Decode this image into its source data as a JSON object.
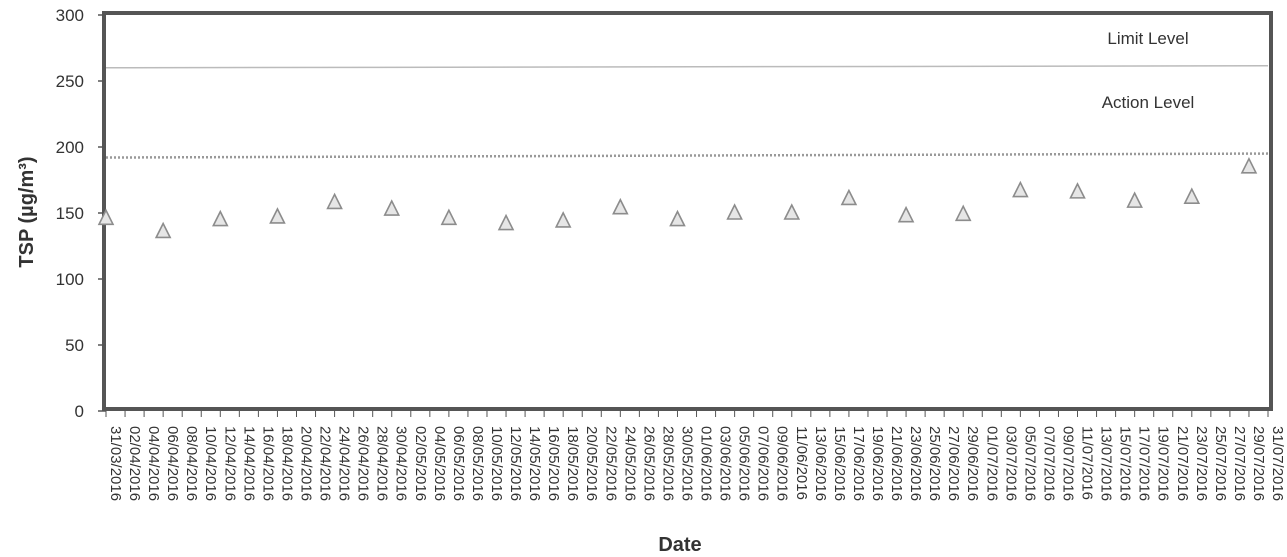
{
  "chart_data": {
    "type": "scatter",
    "xlabel": "Date",
    "ylabel": "TSP (µg/m³)",
    "ylim": [
      0,
      300
    ],
    "yticks": [
      0,
      50,
      100,
      150,
      200,
      250,
      300
    ],
    "grid": false,
    "x_ticks": [
      "31/03/2016",
      "02/04/2016",
      "04/04/2016",
      "06/04/2016",
      "08/04/2016",
      "10/04/2016",
      "12/04/2016",
      "14/04/2016",
      "16/04/2016",
      "18/04/2016",
      "20/04/2016",
      "22/04/2016",
      "24/04/2016",
      "26/04/2016",
      "28/04/2016",
      "30/04/2016",
      "02/05/2016",
      "04/05/2016",
      "06/05/2016",
      "08/05/2016",
      "10/05/2016",
      "12/05/2016",
      "14/05/2016",
      "16/05/2016",
      "18/05/2016",
      "20/05/2016",
      "22/05/2016",
      "24/05/2016",
      "26/05/2016",
      "28/05/2016",
      "30/05/2016",
      "01/06/2016",
      "03/06/2016",
      "05/06/2016",
      "07/06/2016",
      "09/06/2016",
      "11/06/2016",
      "13/06/2016",
      "15/06/2016",
      "17/06/2016",
      "19/06/2016",
      "21/06/2016",
      "23/06/2016",
      "25/06/2016",
      "27/06/2016",
      "29/06/2016",
      "01/07/2016",
      "03/07/2016",
      "05/07/2016",
      "07/07/2016",
      "09/07/2016",
      "11/07/2016",
      "13/07/2016",
      "15/07/2016",
      "17/07/2016",
      "19/07/2016",
      "21/07/2016",
      "23/07/2016",
      "25/07/2016",
      "27/07/2016",
      "29/07/2016",
      "31/07/2016"
    ],
    "points": [
      {
        "x": "31/03/2016",
        "y": 146
      },
      {
        "x": "06/04/2016",
        "y": 136
      },
      {
        "x": "12/04/2016",
        "y": 145
      },
      {
        "x": "18/04/2016",
        "y": 147
      },
      {
        "x": "24/04/2016",
        "y": 158
      },
      {
        "x": "30/04/2016",
        "y": 153
      },
      {
        "x": "06/05/2016",
        "y": 146
      },
      {
        "x": "12/05/2016",
        "y": 142
      },
      {
        "x": "18/05/2016",
        "y": 144
      },
      {
        "x": "24/05/2016",
        "y": 154
      },
      {
        "x": "30/05/2016",
        "y": 145
      },
      {
        "x": "05/06/2016",
        "y": 150
      },
      {
        "x": "11/06/2016",
        "y": 150
      },
      {
        "x": "17/06/2016",
        "y": 161
      },
      {
        "x": "23/06/2016",
        "y": 148
      },
      {
        "x": "29/06/2016",
        "y": 149
      },
      {
        "x": "05/07/2016",
        "y": 167
      },
      {
        "x": "11/07/2016",
        "y": 166
      },
      {
        "x": "17/07/2016",
        "y": 159
      },
      {
        "x": "23/07/2016",
        "y": 162
      },
      {
        "x": "29/07/2016",
        "y": 185
      }
    ],
    "limit_level": {
      "label": "Limit Level",
      "value": 260
    },
    "action_level": {
      "label": "Action Level",
      "value": 192
    },
    "colors": {
      "marker": "#8c8c8c",
      "frame": "#555555",
      "limit_line": "#bbbbbb",
      "action_line": "#999999"
    }
  }
}
